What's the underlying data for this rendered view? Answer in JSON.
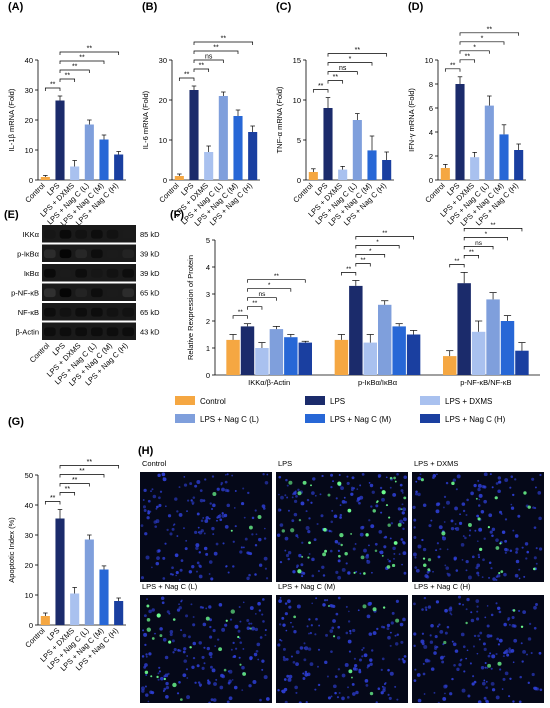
{
  "colors": {
    "control": "#f5a742",
    "lps": "#1b2b6b",
    "dxms": "#a9c1ef",
    "nagL": "#7f9fdc",
    "nagM": "#2767d6",
    "nagH": "#1a3fa0",
    "blot_bg": "#1a1a1a",
    "micro_bg": "#050818"
  },
  "categories": [
    "Control",
    "LPS",
    "LPS + DXMS",
    "LPS + Nag C (L)",
    "LPS + Nag C (M)",
    "LPS + Nag C (H)"
  ],
  "chart_data": [
    {
      "type": "bar",
      "panel": "(A)",
      "ylabel": "IL-1β mRNA (Fold)",
      "ylim": [
        0,
        40
      ],
      "yticks": [
        0,
        10,
        20,
        30,
        40
      ],
      "values": [
        1.0,
        26.5,
        4.5,
        18.5,
        13.5,
        8.5
      ],
      "errors": [
        0.5,
        1.5,
        2.0,
        1.5,
        1.5,
        1.0
      ],
      "sig": [
        {
          "a": 0,
          "b": 1,
          "label": "**"
        },
        {
          "a": 1,
          "b": 2,
          "label": "**"
        },
        {
          "a": 1,
          "b": 3,
          "label": "**"
        },
        {
          "a": 1,
          "b": 4,
          "label": "**"
        },
        {
          "a": 1,
          "b": 5,
          "label": "**"
        }
      ]
    },
    {
      "type": "bar",
      "panel": "(B)",
      "ylabel": "IL-6 mRNA (Fold)",
      "ylim": [
        0,
        30
      ],
      "yticks": [
        0,
        10,
        20,
        30
      ],
      "values": [
        1.0,
        22.5,
        7.0,
        21.0,
        16.0,
        12.0
      ],
      "errors": [
        0.5,
        1.0,
        1.5,
        1.0,
        1.5,
        1.5
      ],
      "sig": [
        {
          "a": 0,
          "b": 1,
          "label": "**"
        },
        {
          "a": 1,
          "b": 2,
          "label": "**"
        },
        {
          "a": 1,
          "b": 3,
          "label": "ns"
        },
        {
          "a": 1,
          "b": 4,
          "label": "**"
        },
        {
          "a": 1,
          "b": 5,
          "label": "**"
        }
      ]
    },
    {
      "type": "bar",
      "panel": "(C)",
      "ylabel": "TNF-α mRNA (Fold)",
      "ylim": [
        0,
        15
      ],
      "yticks": [
        0,
        5,
        10,
        15
      ],
      "values": [
        1.0,
        9.0,
        1.3,
        7.5,
        3.7,
        2.5
      ],
      "errors": [
        0.4,
        1.3,
        0.4,
        0.8,
        1.8,
        1.0
      ],
      "sig": [
        {
          "a": 0,
          "b": 1,
          "label": "**"
        },
        {
          "a": 1,
          "b": 2,
          "label": "**"
        },
        {
          "a": 1,
          "b": 3,
          "label": "ns"
        },
        {
          "a": 1,
          "b": 4,
          "label": "*"
        },
        {
          "a": 1,
          "b": 5,
          "label": "**"
        }
      ]
    },
    {
      "type": "bar",
      "panel": "(D)",
      "ylabel": "IFN-γ mRNA (Fold)",
      "ylim": [
        0,
        10
      ],
      "yticks": [
        0,
        2,
        4,
        6,
        8,
        10
      ],
      "values": [
        1.0,
        8.0,
        1.9,
        6.2,
        3.8,
        2.5
      ],
      "errors": [
        0.3,
        0.6,
        0.4,
        0.8,
        0.8,
        0.5
      ],
      "sig": [
        {
          "a": 0,
          "b": 1,
          "label": "**"
        },
        {
          "a": 1,
          "b": 2,
          "label": "**"
        },
        {
          "a": 1,
          "b": 3,
          "label": "*"
        },
        {
          "a": 1,
          "b": 4,
          "label": "*"
        },
        {
          "a": 1,
          "b": 5,
          "label": "**"
        }
      ]
    },
    {
      "type": "bar",
      "panel": "(F)",
      "ylabel": "Relative Rexpression of Protein",
      "ylim": [
        0,
        5
      ],
      "yticks": [
        0,
        1,
        2,
        3,
        4,
        5
      ],
      "groups": [
        "IKKα/β-Actin",
        "p-IκBα/IκBα",
        "p-NF-κB/NF-κB"
      ],
      "series": [
        {
          "name": "Control",
          "values": [
            1.3,
            1.3,
            0.7
          ],
          "errors": [
            0.2,
            0.2,
            0.2
          ]
        },
        {
          "name": "LPS",
          "values": [
            1.8,
            3.3,
            3.4
          ],
          "errors": [
            0.1,
            0.2,
            0.4
          ]
        },
        {
          "name": "LPS + DXMS",
          "values": [
            1.0,
            1.2,
            1.6
          ],
          "errors": [
            0.2,
            0.3,
            0.4
          ]
        },
        {
          "name": "LPS + Nag C (L)",
          "values": [
            1.7,
            2.6,
            2.8
          ],
          "errors": [
            0.1,
            0.15,
            0.25
          ]
        },
        {
          "name": "LPS + Nag C (M)",
          "values": [
            1.4,
            1.8,
            2.0
          ],
          "errors": [
            0.1,
            0.1,
            0.2
          ]
        },
        {
          "name": "LPS + Nag C (H)",
          "values": [
            1.2,
            1.5,
            0.9
          ],
          "errors": [
            0.05,
            0.15,
            0.3
          ]
        }
      ],
      "sig": [
        [
          {
            "a": 0,
            "b": 1,
            "label": "**"
          },
          {
            "a": 1,
            "b": 2,
            "label": "**"
          },
          {
            "a": 1,
            "b": 3,
            "label": "ns"
          },
          {
            "a": 1,
            "b": 4,
            "label": "*"
          },
          {
            "a": 1,
            "b": 5,
            "label": "**"
          }
        ],
        [
          {
            "a": 0,
            "b": 1,
            "label": "**"
          },
          {
            "a": 1,
            "b": 2,
            "label": "**"
          },
          {
            "a": 1,
            "b": 3,
            "label": "*"
          },
          {
            "a": 1,
            "b": 4,
            "label": "*"
          },
          {
            "a": 1,
            "b": 5,
            "label": "**"
          }
        ],
        [
          {
            "a": 0,
            "b": 1,
            "label": "**"
          },
          {
            "a": 1,
            "b": 2,
            "label": "**"
          },
          {
            "a": 1,
            "b": 3,
            "label": "ns"
          },
          {
            "a": 1,
            "b": 4,
            "label": "*"
          },
          {
            "a": 1,
            "b": 5,
            "label": "**"
          }
        ]
      ],
      "legend": [
        "Control",
        "LPS",
        "LPS + DXMS",
        "LPS + Nag C (L)",
        "LPS + Nag C (M)",
        "LPS + Nag C (H)"
      ]
    },
    {
      "type": "bar",
      "panel": "(G)",
      "ylabel": "Apoptotic Index (%)",
      "ylim": [
        0,
        50
      ],
      "yticks": [
        0,
        10,
        20,
        30,
        40,
        50
      ],
      "values": [
        3.0,
        35.5,
        10.5,
        28.5,
        18.5,
        8.0
      ],
      "errors": [
        1.0,
        3.0,
        2.0,
        1.5,
        1.2,
        1.0
      ],
      "sig": [
        {
          "a": 0,
          "b": 1,
          "label": "**"
        },
        {
          "a": 1,
          "b": 2,
          "label": "**"
        },
        {
          "a": 1,
          "b": 3,
          "label": "**"
        },
        {
          "a": 1,
          "b": 4,
          "label": "**"
        },
        {
          "a": 1,
          "b": 5,
          "label": "**"
        }
      ]
    }
  ],
  "panel_e": {
    "label": "(E)",
    "rows": [
      {
        "name": "IKKα",
        "size": "85 kD"
      },
      {
        "name": "p-IκBα",
        "size": "39 kD"
      },
      {
        "name": "IκBα",
        "size": "39 kD"
      },
      {
        "name": "p-NF-κB",
        "size": "65 kD"
      },
      {
        "name": "NF-κB",
        "size": "65 kD"
      },
      {
        "name": "β-Actin",
        "size": "43 kD"
      }
    ],
    "intensity": [
      [
        0.75,
        0.9,
        0.8,
        0.85,
        0.8,
        0.7
      ],
      [
        0.5,
        0.95,
        0.55,
        0.85,
        0.7,
        0.6
      ],
      [
        0.9,
        0.7,
        0.85,
        0.75,
        0.8,
        0.85
      ],
      [
        0.45,
        0.95,
        0.6,
        0.85,
        0.7,
        0.5
      ],
      [
        0.85,
        0.8,
        0.85,
        0.85,
        0.8,
        0.8
      ],
      [
        0.85,
        0.85,
        0.85,
        0.85,
        0.85,
        0.85
      ]
    ]
  },
  "panel_h": {
    "label": "(H)",
    "images": [
      {
        "title": "Control",
        "density": 0.05
      },
      {
        "title": "LPS",
        "density": 0.55
      },
      {
        "title": "LPS + DXMS",
        "density": 0.25
      },
      {
        "title": "LPS + Nag C (L)",
        "density": 0.3
      },
      {
        "title": "LPS + Nag C (M)",
        "density": 0.12
      },
      {
        "title": "LPS + Nag C (H)",
        "density": 0.08
      }
    ]
  }
}
